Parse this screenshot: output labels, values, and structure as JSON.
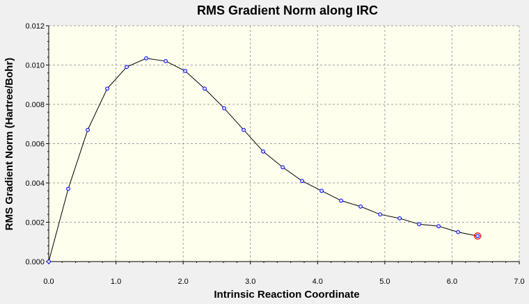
{
  "chart_data": {
    "type": "line",
    "title": "RMS Gradient Norm along IRC",
    "xlabel": "Intrinsic Reaction Coordinate",
    "ylabel": "RMS Gradient Norm (Hartree/Bohr)",
    "xlim": [
      0.0,
      7.0
    ],
    "ylim": [
      0.0,
      0.012
    ],
    "x_ticks": [
      "0.0",
      "1.0",
      "2.0",
      "3.0",
      "4.0",
      "5.0",
      "6.0",
      "7.0"
    ],
    "y_ticks": [
      "0.000",
      "0.002",
      "0.004",
      "0.006",
      "0.008",
      "0.010",
      "0.012"
    ],
    "grid": true,
    "legend": "none",
    "series": [
      {
        "x": [
          0.0,
          0.29,
          0.58,
          0.87,
          1.16,
          1.45,
          1.74,
          2.03,
          2.32,
          2.61,
          2.9,
          3.19,
          3.48,
          3.77,
          4.06,
          4.35,
          4.64,
          4.93,
          5.22,
          5.51,
          5.8,
          6.09,
          6.38
        ],
        "y": [
          0.0,
          0.0037,
          0.0067,
          0.0088,
          0.0099,
          0.01034,
          0.0102,
          0.0097,
          0.0088,
          0.0078,
          0.0067,
          0.0056,
          0.0048,
          0.0041,
          0.0036,
          0.0031,
          0.0028,
          0.0024,
          0.0022,
          0.0019,
          0.0018,
          0.0015,
          0.0013
        ]
      }
    ],
    "highlight_point_index": 22,
    "colors": {
      "line": "#000000",
      "marker": "#0000ff",
      "highlight": "#ff0000",
      "plot_background": "#ffffee",
      "page_background": "#f0f0f0",
      "grid": "#a0a0a0"
    }
  }
}
